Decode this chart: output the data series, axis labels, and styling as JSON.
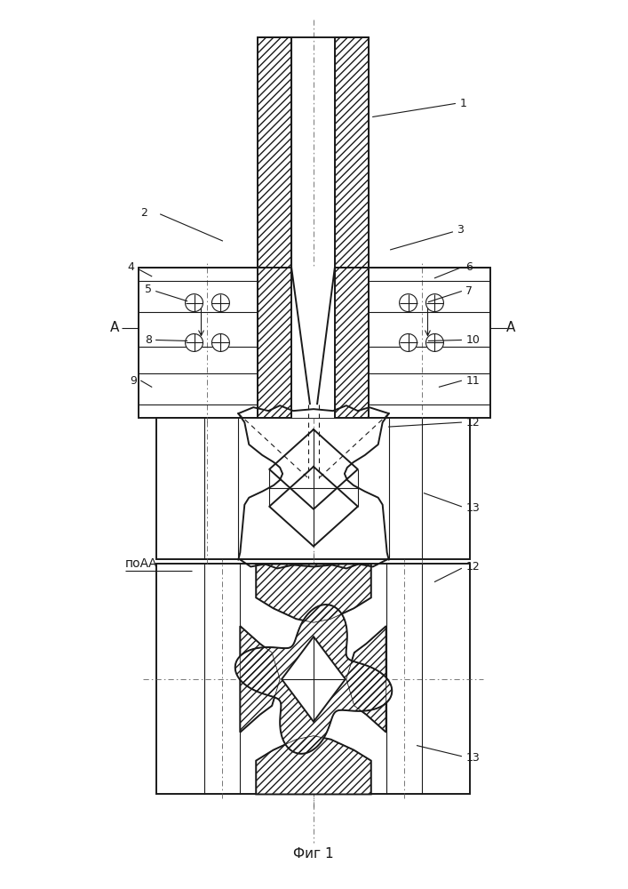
{
  "bg_color": "#ffffff",
  "line_color": "#1a1a1a",
  "fig_caption": "Фиг 1",
  "section_label": "поАА"
}
